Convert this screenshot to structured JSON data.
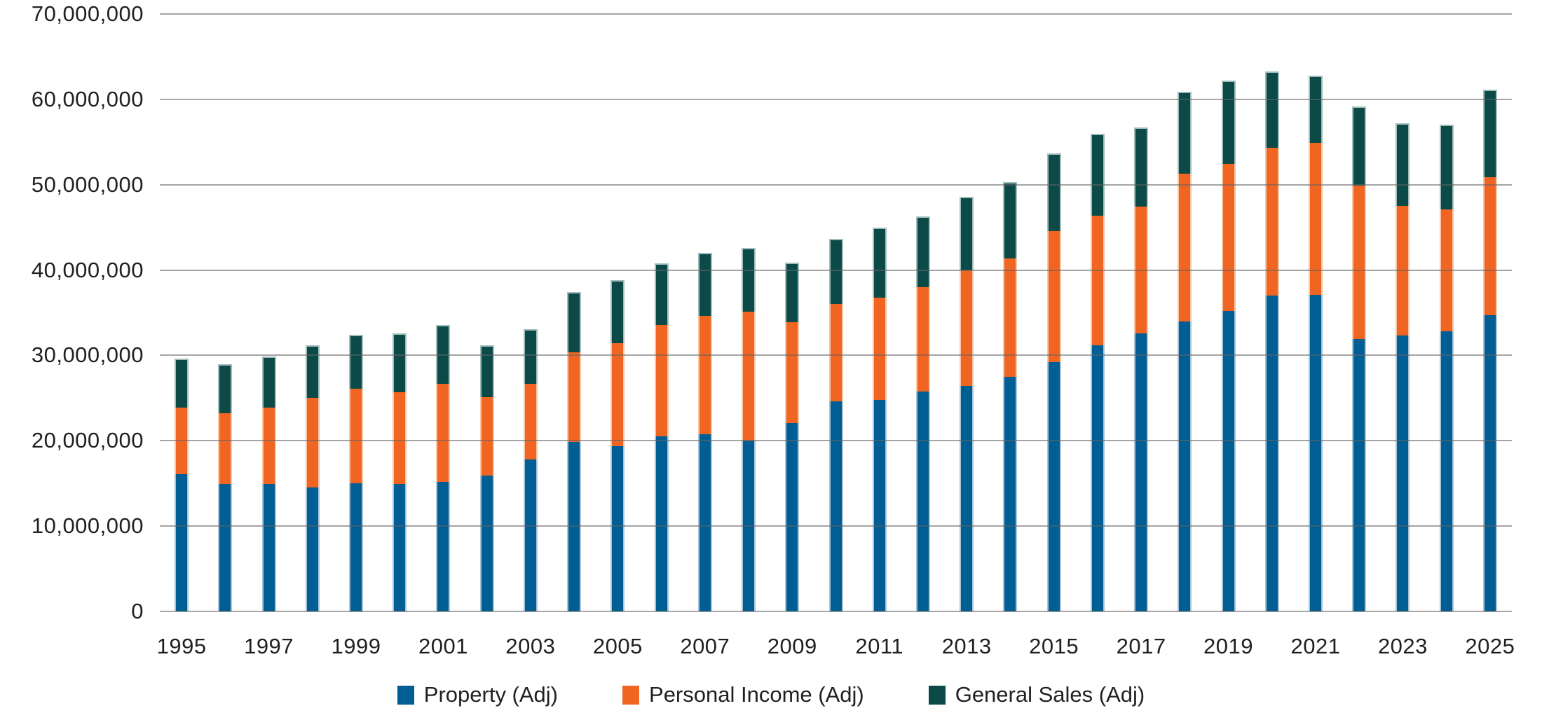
{
  "chart_data": {
    "type": "bar",
    "stacked": true,
    "title": "",
    "categories": [
      "1995",
      "1996",
      "1997",
      "1998",
      "1999",
      "2000",
      "2001",
      "2002",
      "2003",
      "2004",
      "2005",
      "2006",
      "2007",
      "2008",
      "2009",
      "2010",
      "2011",
      "2012",
      "2013",
      "2014",
      "2015",
      "2016",
      "2017",
      "2018",
      "2019",
      "2020",
      "2021",
      "2022",
      "2023",
      "2024",
      "2025"
    ],
    "series": [
      {
        "name": "Property (Adj)",
        "color": "#005e94",
        "edge_color": "#a8c5d8",
        "values": [
          16100000,
          14900000,
          14900000,
          14500000,
          15000000,
          14900000,
          15200000,
          15900000,
          17800000,
          19900000,
          19400000,
          20500000,
          20800000,
          20000000,
          22100000,
          24600000,
          24800000,
          25800000,
          26400000,
          27500000,
          29200000,
          31200000,
          32600000,
          34000000,
          35200000,
          37000000,
          37100000,
          31900000,
          32300000,
          32800000,
          34700000
        ]
      },
      {
        "name": "Personal Income (Adj)",
        "color": "#f16522",
        "edge_color": "#f9c6a8",
        "values": [
          7800000,
          8300000,
          9000000,
          10500000,
          11100000,
          10800000,
          11500000,
          9200000,
          8900000,
          10500000,
          12000000,
          13100000,
          13800000,
          15100000,
          11800000,
          11400000,
          12000000,
          12200000,
          13600000,
          13900000,
          15400000,
          15200000,
          14800000,
          17300000,
          17200000,
          17300000,
          17800000,
          18000000,
          15200000,
          14300000,
          16200000
        ]
      },
      {
        "name": "General Sales (Adj)",
        "color": "#0b4a47",
        "edge_color": "#a2bebc",
        "values": [
          5700000,
          5800000,
          6000000,
          6200000,
          6300000,
          6900000,
          6900000,
          6100000,
          6400000,
          7000000,
          7400000,
          7200000,
          7400000,
          7500000,
          7000000,
          7700000,
          8200000,
          8300000,
          8600000,
          8900000,
          9100000,
          9600000,
          9300000,
          9600000,
          9800000,
          9000000,
          7900000,
          9300000,
          9700000,
          9900000,
          10200000
        ]
      }
    ],
    "ylim": [
      0,
      70000000
    ],
    "y_ticks": [
      0,
      10000000,
      20000000,
      30000000,
      40000000,
      50000000,
      60000000,
      70000000
    ],
    "y_tick_labels": [
      "0",
      "10,000,000",
      "20,000,000",
      "30,000,000",
      "40,000,000",
      "50,000,000",
      "60,000,000",
      "70,000,000"
    ],
    "x_tick_labels": [
      "1995",
      "1997",
      "1999",
      "2001",
      "2003",
      "2005",
      "2007",
      "2009",
      "2011",
      "2013",
      "2015",
      "2017",
      "2019",
      "2021",
      "2023",
      "2025"
    ],
    "x_tick_step": 2,
    "grid": "horizontal",
    "grid_color": "#a6a6a6",
    "text_color": "#231f20",
    "legend_position": "bottom"
  }
}
